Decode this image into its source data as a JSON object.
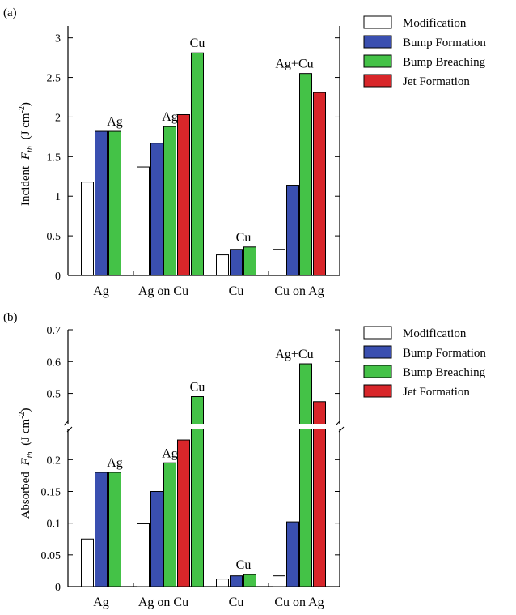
{
  "colors": {
    "modification": "#ffffff",
    "bump_formation": "#3a4fb0",
    "bump_breaching": "#44c247",
    "jet_formation": "#d8262a",
    "axis": "#000000"
  },
  "legend": [
    "Modification",
    "Bump Formation",
    "Bump Breaching",
    "Jet Formation"
  ],
  "chart_data": [
    {
      "panel": "(a)",
      "type": "bar",
      "categories": [
        "Ag",
        "Ag on Cu",
        "Cu",
        "Cu on Ag"
      ],
      "ylabel_prefix": "Incident",
      "ylabel_symbol": "F",
      "ylabel_sub": "th",
      "ylabel_unit": "(J cm",
      "ylabel_exp": "-2",
      "ylabel_close": ")",
      "ylim": [
        0,
        3.15
      ],
      "yticks": [
        "0",
        "0.5",
        "1",
        "1.5",
        "2",
        "2.5",
        "3"
      ],
      "ytick_values": [
        0,
        0.5,
        1,
        1.5,
        2,
        2.5,
        3
      ],
      "series": [
        {
          "name": "Modification",
          "values": [
            1.18,
            1.37,
            0.26,
            0.33
          ]
        },
        {
          "name": "Bump Formation",
          "values": [
            1.82,
            1.67,
            0.33,
            1.14
          ]
        },
        {
          "name": "Bump Breaching",
          "values": [
            1.82,
            1.88,
            0.36,
            2.55
          ]
        },
        {
          "name": "Jet Formation",
          "values": [
            null,
            2.03,
            null,
            2.31
          ]
        }
      ],
      "annotations": [
        {
          "text": "Ag",
          "category": 0,
          "series": 2
        },
        {
          "text": "Ag",
          "category": 1,
          "series": 2
        },
        {
          "text": "Cu",
          "category": 1,
          "series": 3
        },
        {
          "text": "Cu",
          "category": 2,
          "series": 2
        },
        {
          "text": "Ag+Cu",
          "category": 3,
          "series": 2
        }
      ],
      "breaching_top_override": [
        null,
        2.81,
        null,
        null
      ]
    },
    {
      "panel": "(b)",
      "type": "bar",
      "categories": [
        "Ag",
        "Ag on Cu",
        "Cu",
        "Cu on Ag"
      ],
      "ylabel_prefix": "Absorbed",
      "ylabel_symbol": "F",
      "ylabel_sub": "th",
      "ylabel_unit": "(J cm",
      "ylabel_exp": "-2",
      "ylabel_close": ")",
      "broken_axis": true,
      "lower_range": [
        0,
        0.24
      ],
      "upper_range": [
        0.42,
        0.7
      ],
      "yticks": [
        "0",
        "0.05",
        "0.1",
        "0.15",
        "0.2",
        "0.5",
        "0.6",
        "0.7"
      ],
      "ytick_values": [
        0,
        0.05,
        0.1,
        0.15,
        0.2,
        0.5,
        0.6,
        0.7
      ],
      "series": [
        {
          "name": "Modification",
          "values": [
            0.075,
            0.099,
            0.012,
            0.017
          ]
        },
        {
          "name": "Bump Formation",
          "values": [
            0.18,
            0.15,
            0.017,
            0.102
          ]
        },
        {
          "name": "Bump Breaching",
          "values": [
            0.18,
            0.195,
            0.019,
            0.593
          ]
        },
        {
          "name": "Jet Formation",
          "values": [
            null,
            0.231,
            null,
            0.474
          ]
        }
      ],
      "breaching_top_override": [
        null,
        0.49,
        null,
        null
      ],
      "annotations": [
        {
          "text": "Ag",
          "category": 0,
          "series": 2
        },
        {
          "text": "Ag",
          "category": 1,
          "series": 2
        },
        {
          "text": "Cu",
          "category": 1,
          "series": 3
        },
        {
          "text": "Cu",
          "category": 2,
          "series": 2
        },
        {
          "text": "Ag+Cu",
          "category": 3,
          "series": 2
        }
      ]
    }
  ]
}
